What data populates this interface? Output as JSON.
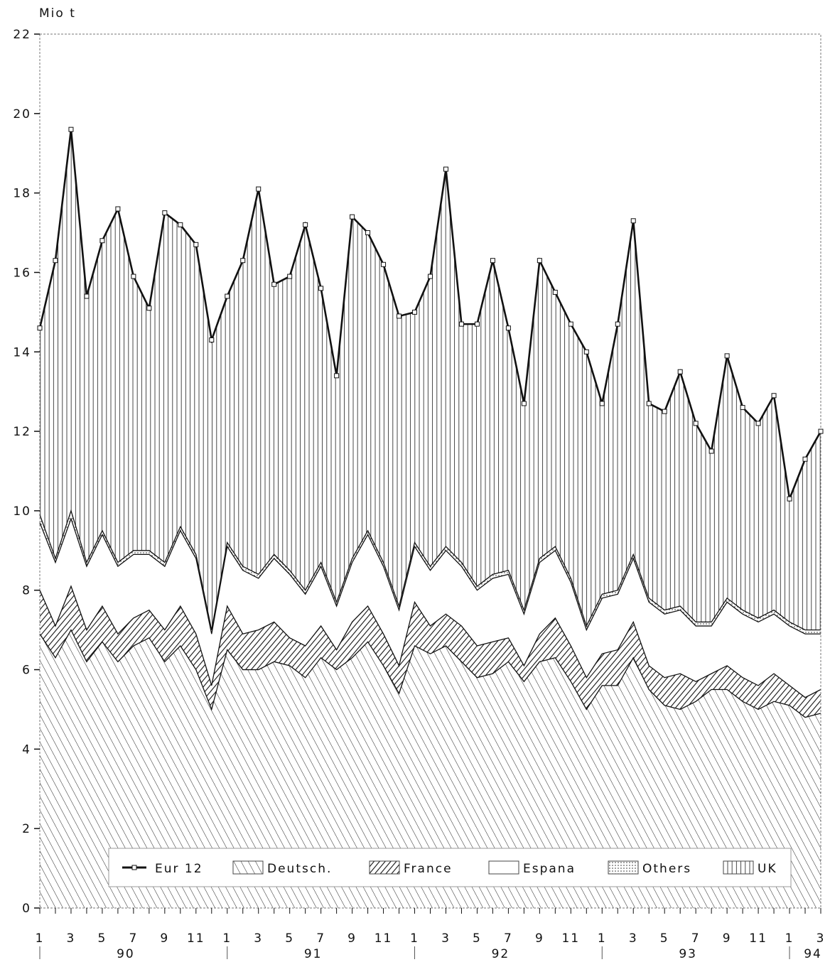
{
  "chart_data": {
    "type": "area",
    "stacked": true,
    "ylabel": "Mio t",
    "ylim": [
      0,
      22
    ],
    "yticks": [
      0,
      2,
      4,
      6,
      8,
      10,
      12,
      14,
      16,
      18,
      20,
      22
    ],
    "x_tick_labels": [
      "1",
      "3",
      "5",
      "7",
      "9",
      "11",
      "1",
      "3",
      "5",
      "7",
      "9",
      "11",
      "1",
      "3",
      "5",
      "7",
      "9",
      "11",
      "1",
      "3",
      "5",
      "7",
      "9",
      "11",
      "1",
      "3"
    ],
    "year_labels": [
      "90",
      "91",
      "92",
      "93",
      "94"
    ],
    "grid": false,
    "legend_position": "bottom-inside",
    "legend": [
      "Eur 12",
      "Deutsch.",
      "France",
      "Espana",
      "Others",
      "UK"
    ],
    "x": [
      "1990-01",
      "1990-02",
      "1990-03",
      "1990-04",
      "1990-05",
      "1990-06",
      "1990-07",
      "1990-08",
      "1990-09",
      "1990-10",
      "1990-11",
      "1990-12",
      "1991-01",
      "1991-02",
      "1991-03",
      "1991-04",
      "1991-05",
      "1991-06",
      "1991-07",
      "1991-08",
      "1991-09",
      "1991-10",
      "1991-11",
      "1991-12",
      "1992-01",
      "1992-02",
      "1992-03",
      "1992-04",
      "1992-05",
      "1992-06",
      "1992-07",
      "1992-08",
      "1992-09",
      "1992-10",
      "1992-11",
      "1992-12",
      "1993-01",
      "1993-02",
      "1993-03",
      "1993-04",
      "1993-05",
      "1993-06",
      "1993-07",
      "1993-08",
      "1993-09",
      "1993-10",
      "1993-11",
      "1993-12",
      "1994-01",
      "1994-02",
      "1994-03"
    ],
    "cumulative_levels": {
      "Deutsch.": [
        6.9,
        6.3,
        7.0,
        6.2,
        6.7,
        6.2,
        6.6,
        6.8,
        6.2,
        6.6,
        6.0,
        5.0,
        6.5,
        6.0,
        6.0,
        6.2,
        6.1,
        5.8,
        6.3,
        6.0,
        6.3,
        6.7,
        6.1,
        5.4,
        6.6,
        6.4,
        6.6,
        6.2,
        5.8,
        5.9,
        6.2,
        5.7,
        6.2,
        6.3,
        5.7,
        5.0,
        5.6,
        5.6,
        6.3,
        5.5,
        5.1,
        5.0,
        5.2,
        5.5,
        5.5,
        5.2,
        5.0,
        5.2,
        5.1,
        4.8,
        4.9
      ],
      "France": [
        8.0,
        7.1,
        8.1,
        7.0,
        7.6,
        6.9,
        7.3,
        7.5,
        7.0,
        7.6,
        6.9,
        5.6,
        7.6,
        6.9,
        7.0,
        7.2,
        6.8,
        6.6,
        7.1,
        6.5,
        7.2,
        7.6,
        6.9,
        6.1,
        7.7,
        7.1,
        7.4,
        7.1,
        6.6,
        6.7,
        6.8,
        6.1,
        6.9,
        7.3,
        6.6,
        5.8,
        6.4,
        6.5,
        7.2,
        6.1,
        5.8,
        5.9,
        5.7,
        5.9,
        6.1,
        5.8,
        5.6,
        5.9,
        5.6,
        5.3,
        5.5
      ],
      "Espana": [
        9.7,
        8.7,
        9.8,
        8.6,
        9.4,
        8.6,
        8.9,
        8.9,
        8.6,
        9.5,
        8.8,
        6.9,
        9.1,
        8.5,
        8.3,
        8.8,
        8.4,
        7.9,
        8.6,
        7.6,
        8.7,
        9.4,
        8.6,
        7.5,
        9.1,
        8.5,
        9.0,
        8.6,
        8.0,
        8.3,
        8.4,
        7.4,
        8.7,
        9.0,
        8.2,
        7.0,
        7.8,
        7.9,
        8.8,
        7.7,
        7.4,
        7.5,
        7.1,
        7.1,
        7.7,
        7.4,
        7.2,
        7.4,
        7.1,
        6.9,
        6.9
      ],
      "Others": [
        9.9,
        8.8,
        10.0,
        8.7,
        9.5,
        8.7,
        9.0,
        9.0,
        8.7,
        9.6,
        8.9,
        7.0,
        9.2,
        8.6,
        8.4,
        8.9,
        8.5,
        8.0,
        8.7,
        7.7,
        8.8,
        9.5,
        8.7,
        7.6,
        9.2,
        8.6,
        9.1,
        8.7,
        8.1,
        8.4,
        8.5,
        7.5,
        8.8,
        9.1,
        8.3,
        7.1,
        7.9,
        8.0,
        8.9,
        7.8,
        7.5,
        7.6,
        7.2,
        7.2,
        7.8,
        7.5,
        7.3,
        7.5,
        7.2,
        7.0,
        7.0
      ],
      "UK": [
        14.6,
        16.3,
        19.6,
        15.4,
        16.8,
        17.6,
        15.9,
        15.1,
        17.5,
        17.2,
        16.7,
        14.3,
        15.4,
        16.3,
        18.1,
        15.7,
        15.9,
        17.2,
        15.6,
        13.4,
        17.4,
        17.0,
        16.2,
        14.9,
        15.0,
        15.9,
        18.6,
        14.7,
        14.7,
        16.3,
        14.6,
        12.7,
        16.3,
        15.5,
        14.7,
        14.0,
        12.7,
        14.7,
        17.3,
        12.7,
        12.5,
        13.5,
        12.2,
        11.5,
        13.9,
        12.6,
        12.2,
        12.9,
        10.3,
        11.3,
        12.0
      ]
    },
    "series": [
      {
        "name": "Eur 12",
        "style": "line-square-markers",
        "values": [
          14.6,
          16.3,
          19.6,
          15.4,
          16.8,
          17.6,
          15.9,
          15.1,
          17.5,
          17.2,
          16.7,
          14.3,
          15.4,
          16.3,
          18.1,
          15.7,
          15.9,
          17.2,
          15.6,
          13.4,
          17.4,
          17.0,
          16.2,
          14.9,
          15.0,
          15.9,
          18.6,
          14.7,
          14.7,
          16.3,
          14.6,
          12.7,
          16.3,
          15.5,
          14.7,
          14.0,
          12.7,
          14.7,
          17.3,
          12.7,
          12.5,
          13.5,
          12.2,
          11.5,
          13.9,
          12.6,
          12.2,
          12.9,
          10.3,
          11.3,
          12.0
        ]
      },
      {
        "name": "Deutsch.",
        "pattern": "hatch-thin-diagonal"
      },
      {
        "name": "France",
        "pattern": "hatch-dense-diagonal"
      },
      {
        "name": "Espana",
        "pattern": "blank"
      },
      {
        "name": "Others",
        "pattern": "dotted"
      },
      {
        "name": "UK",
        "pattern": "vertical-lines"
      }
    ],
    "colors": {
      "ink": "#111111",
      "background": "#ffffff"
    }
  }
}
